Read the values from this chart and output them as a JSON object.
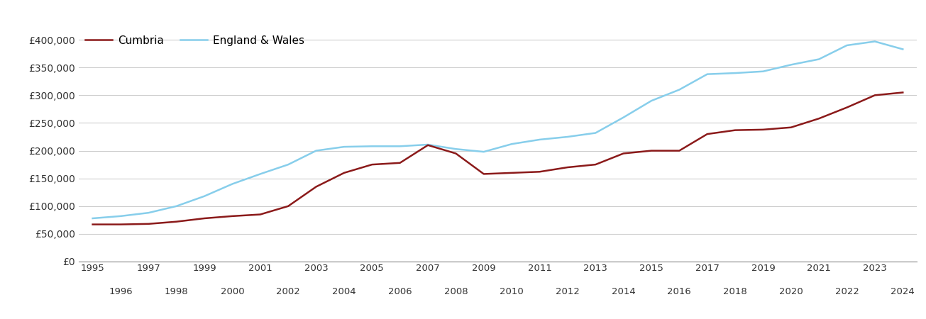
{
  "years": [
    1995,
    1996,
    1997,
    1998,
    1999,
    2000,
    2001,
    2002,
    2003,
    2004,
    2005,
    2006,
    2007,
    2008,
    2009,
    2010,
    2011,
    2012,
    2013,
    2014,
    2015,
    2016,
    2017,
    2018,
    2019,
    2020,
    2021,
    2022,
    2023,
    2024
  ],
  "cumbria": [
    67000,
    67000,
    68000,
    72000,
    78000,
    82000,
    85000,
    100000,
    135000,
    160000,
    175000,
    178000,
    210000,
    195000,
    158000,
    160000,
    162000,
    170000,
    175000,
    195000,
    200000,
    200000,
    230000,
    237000,
    238000,
    242000,
    258000,
    278000,
    300000,
    305000
  ],
  "england_wales": [
    78000,
    82000,
    88000,
    100000,
    118000,
    140000,
    158000,
    175000,
    200000,
    207000,
    208000,
    208000,
    211000,
    203000,
    198000,
    212000,
    220000,
    225000,
    232000,
    260000,
    290000,
    310000,
    338000,
    340000,
    343000,
    355000,
    365000,
    390000,
    397000,
    383000
  ],
  "cumbria_color": "#8B1A1A",
  "england_wales_color": "#87CEEB",
  "background_color": "#ffffff",
  "grid_color": "#cccccc",
  "ylim": [
    0,
    420000
  ],
  "yticks": [
    0,
    50000,
    100000,
    150000,
    200000,
    250000,
    300000,
    350000,
    400000
  ],
  "ytick_labels": [
    "£0",
    "£50,000",
    "£100,000",
    "£150,000",
    "£200,000",
    "£250,000",
    "£300,000",
    "£350,000",
    "£400,000"
  ],
  "cumbria_label": "Cumbria",
  "england_wales_label": "England & Wales",
  "line_width": 1.8,
  "xtick_odd": [
    1995,
    1997,
    1999,
    2001,
    2003,
    2005,
    2007,
    2009,
    2011,
    2013,
    2015,
    2017,
    2019,
    2021,
    2023
  ],
  "xtick_even": [
    1996,
    1998,
    2000,
    2002,
    2004,
    2006,
    2008,
    2010,
    2012,
    2014,
    2016,
    2018,
    2020,
    2022,
    2024
  ]
}
